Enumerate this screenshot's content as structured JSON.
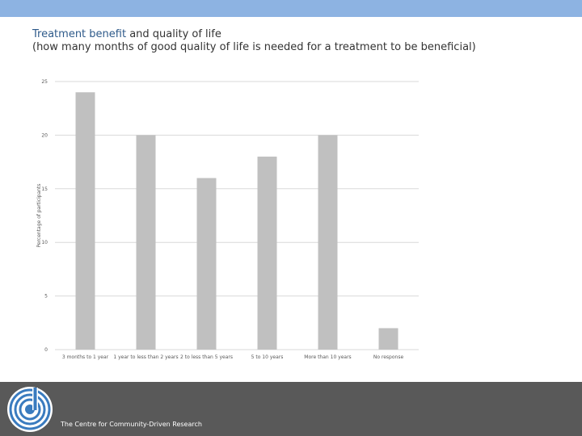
{
  "title": {
    "accent": "Treatment benefit",
    "rest": " and quality of life",
    "subtitle": "(how many months of good quality of life is needed for a treatment to be beneficial)"
  },
  "footer": {
    "org_name": "The Centre for Community-Driven Research",
    "logo_icon": "circular-d-logo-icon"
  },
  "colors": {
    "top_bar": "#8db3e2",
    "bar": "#c0c0c0",
    "footer": "#595959",
    "title_accent": "#2e5a8a"
  },
  "chart_data": {
    "type": "bar",
    "categories": [
      "3 months to 1 year",
      "1 year to less than 2 years",
      "2 to less than 5 years",
      "5 to 10 years",
      "More than 10 years",
      "No response"
    ],
    "values": [
      24,
      20,
      16,
      18,
      20,
      2
    ],
    "ylabel": "Percentage of participants",
    "ylim": [
      0,
      25
    ],
    "yticks": [
      0,
      5,
      10,
      15,
      20,
      25
    ],
    "grid": true,
    "legend": "none"
  }
}
